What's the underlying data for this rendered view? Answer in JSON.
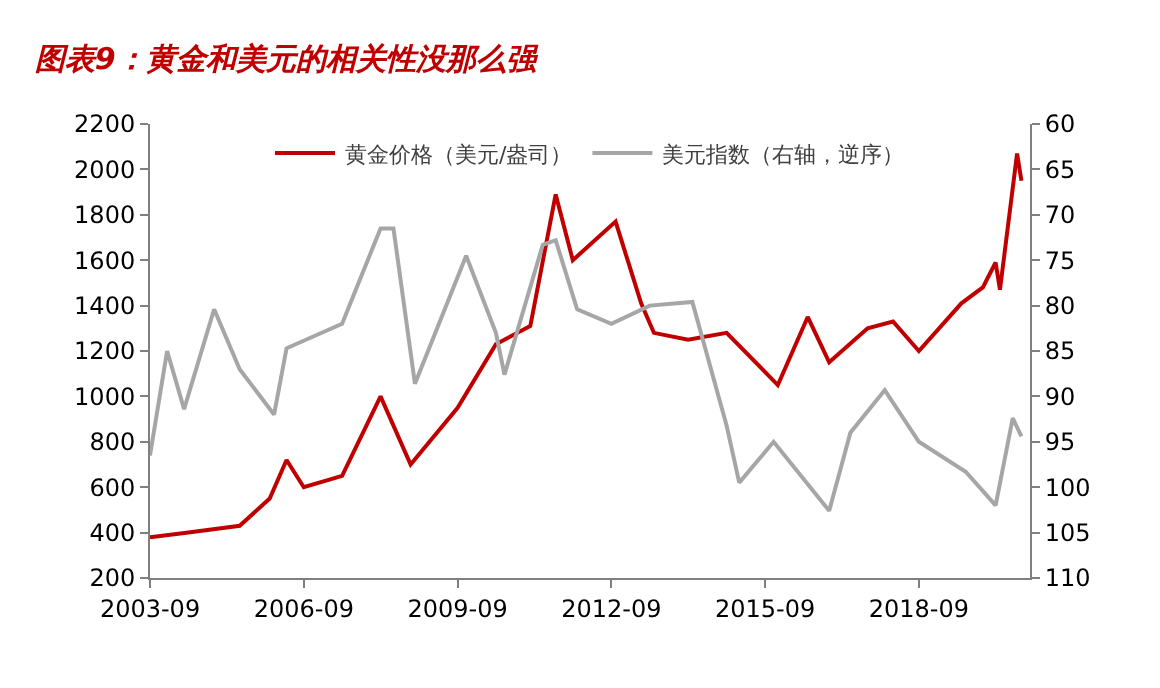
{
  "chart_data": {
    "type": "line",
    "title": "图表9：黄金和美元的相关性没那么强",
    "xlim": [
      "2003-09",
      "2020-11"
    ],
    "xticks": [
      "2003-09",
      "2006-09",
      "2009-09",
      "2012-09",
      "2015-09",
      "2018-09"
    ],
    "ylim": [
      200,
      2200
    ],
    "yticks": [
      200,
      400,
      600,
      800,
      1000,
      1200,
      1400,
      1600,
      1800,
      2000,
      2200
    ],
    "y2lim": [
      110,
      60
    ],
    "y2ticks": [
      60,
      65,
      70,
      75,
      80,
      85,
      90,
      95,
      100,
      105,
      110
    ],
    "legend": "top",
    "marker": "none",
    "line_style": "solid",
    "series": [
      {
        "name": "黄金价格（美元/盎司）",
        "color": "#c00000",
        "x": [
          "2003-09",
          "2004-06",
          "2005-06",
          "2006-01",
          "2006-05",
          "2006-09",
          "2007-06",
          "2008-03",
          "2008-10",
          "2009-09",
          "2010-06",
          "2011-02",
          "2011-08",
          "2011-12",
          "2012-10",
          "2013-04",
          "2013-07",
          "2014-03",
          "2014-12",
          "2015-12",
          "2016-07",
          "2016-12",
          "2017-09",
          "2018-03",
          "2018-09",
          "2019-07",
          "2019-12",
          "2020-03",
          "2020-04",
          "2020-08",
          "2020-09"
        ],
        "values": [
          380,
          400,
          430,
          550,
          720,
          600,
          650,
          1000,
          700,
          950,
          1230,
          1310,
          1890,
          1600,
          1770,
          1410,
          1280,
          1250,
          1280,
          1050,
          1350,
          1150,
          1300,
          1330,
          1200,
          1410,
          1480,
          1590,
          1470,
          2070,
          1950
        ]
      },
      {
        "name": "美元指数（右轴，逆序）",
        "color": "#a6a6a6",
        "axis": "y2",
        "x": [
          "2003-09",
          "2004-01",
          "2004-05",
          "2004-12",
          "2005-06",
          "2006-02",
          "2006-05",
          "2007-06",
          "2008-03",
          "2008-06",
          "2008-11",
          "2009-11",
          "2010-06",
          "2010-08",
          "2011-05",
          "2011-08",
          "2012-01",
          "2012-09",
          "2013-06",
          "2014-04",
          "2014-12",
          "2015-03",
          "2015-11",
          "2016-12",
          "2017-05",
          "2018-01",
          "2018-09",
          "2019-08",
          "2020-03",
          "2020-07",
          "2020-09"
        ],
        "values": [
          96.5,
          85,
          91.4,
          80.4,
          87,
          92,
          84.7,
          82,
          71.5,
          71.5,
          88.6,
          74.5,
          83,
          87.6,
          73.3,
          72.8,
          80.4,
          82,
          80,
          79.6,
          93.2,
          99.5,
          95,
          102.6,
          94,
          89.3,
          95,
          98.3,
          102,
          92.4,
          94.4
        ]
      }
    ]
  }
}
